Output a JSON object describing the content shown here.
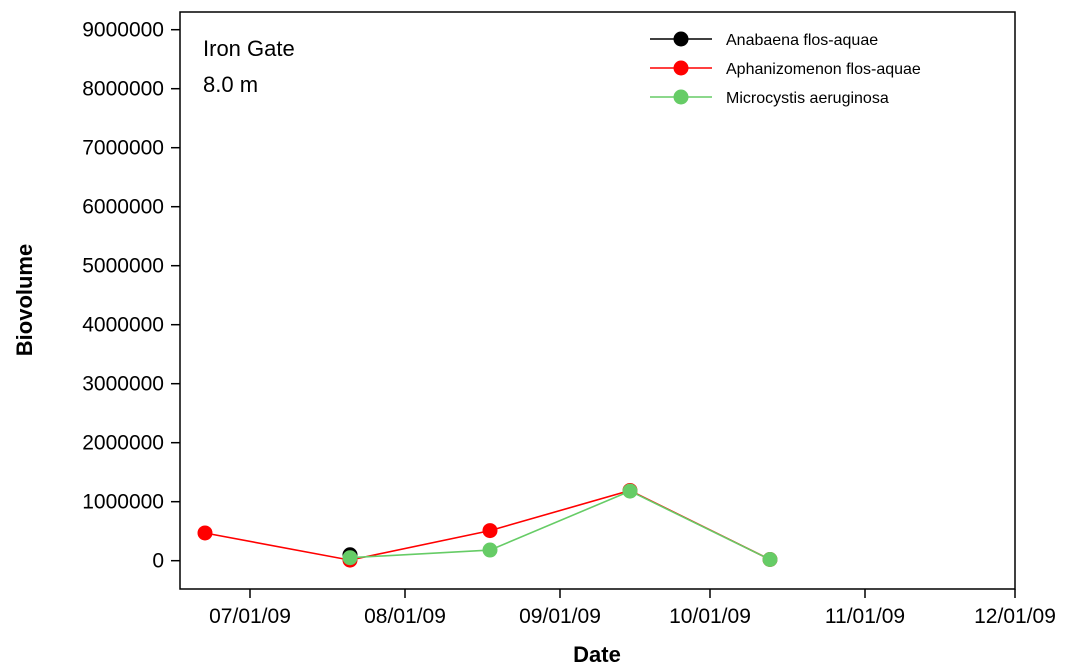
{
  "chart_data": {
    "type": "line",
    "annotations": [
      "Iron Gate",
      "8.0 m"
    ],
    "xlabel": "Date",
    "ylabel": "Biovolume",
    "x_ticks": [
      "07/01/09",
      "08/01/09",
      "09/01/09",
      "10/01/09",
      "11/01/09",
      "12/01/09"
    ],
    "xlim": [
      "2009-06-17",
      "2009-12-01"
    ],
    "y_ticks": [
      "0",
      "1000000",
      "2000000",
      "3000000",
      "4000000",
      "5000000",
      "6000000",
      "7000000",
      "8000000",
      "9000000"
    ],
    "ylim": [
      -480000,
      9300000
    ],
    "grid": false,
    "legend_position": "top-right",
    "series": [
      {
        "name": "Anabaena flos-aquae",
        "color": "#000000",
        "points": [
          {
            "x": "2009-07-21",
            "y": 100000
          }
        ]
      },
      {
        "name": "Aphanizomenon flos-aquae",
        "color": "#ff0000",
        "points": [
          {
            "x": "2009-06-22",
            "y": 470000
          },
          {
            "x": "2009-07-21",
            "y": 10000
          },
          {
            "x": "2009-08-18",
            "y": 510000
          },
          {
            "x": "2009-09-15",
            "y": 1190000
          },
          {
            "x": "2009-10-13",
            "y": 20000
          }
        ]
      },
      {
        "name": "Microcystis aeruginosa",
        "color": "#66cc66",
        "points": [
          {
            "x": "2009-07-21",
            "y": 50000
          },
          {
            "x": "2009-08-18",
            "y": 180000
          },
          {
            "x": "2009-09-15",
            "y": 1180000
          },
          {
            "x": "2009-10-13",
            "y": 20000
          }
        ]
      }
    ]
  }
}
